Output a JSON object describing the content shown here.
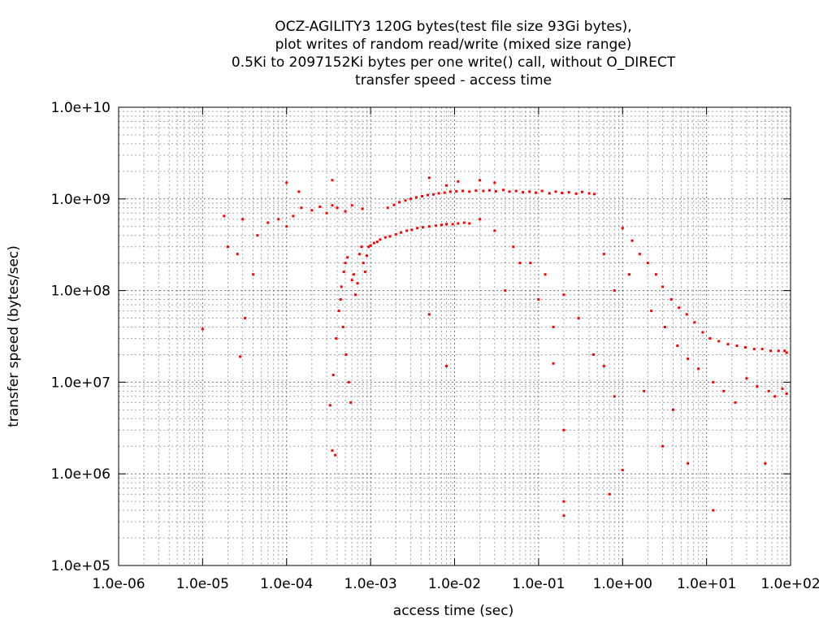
{
  "chart_data": {
    "type": "scatter",
    "title": [
      "OCZ-AGILITY3 120G bytes(test file size 93Gi bytes),",
      "plot writes of random read/write (mixed size range)",
      "0.5Ki to 2097152Ki bytes per one write() call, without O_DIRECT",
      "transfer speed - access time"
    ],
    "xlabel": "access time (sec)",
    "ylabel": "transfer speed (bytes/sec)",
    "x_scale": "log",
    "y_scale": "log",
    "xlim": [
      1e-06,
      100
    ],
    "ylim": [
      100000,
      10000000000
    ],
    "x_ticks": [
      {
        "value": 1e-06,
        "label": "1.0e-06"
      },
      {
        "value": 1e-05,
        "label": "1.0e-05"
      },
      {
        "value": 0.0001,
        "label": "1.0e-04"
      },
      {
        "value": 0.001,
        "label": "1.0e-03"
      },
      {
        "value": 0.01,
        "label": "1.0e-02"
      },
      {
        "value": 0.1,
        "label": "1.0e-01"
      },
      {
        "value": 1,
        "label": "1.0e+00"
      },
      {
        "value": 10,
        "label": "1.0e+01"
      },
      {
        "value": 100,
        "label": "1.0e+02"
      }
    ],
    "y_ticks": [
      {
        "value": 100000,
        "label": "1.0e+05"
      },
      {
        "value": 1000000,
        "label": "1.0e+06"
      },
      {
        "value": 10000000,
        "label": "1.0e+07"
      },
      {
        "value": 100000000,
        "label": "1.0e+08"
      },
      {
        "value": 1000000000,
        "label": "1.0e+09"
      },
      {
        "value": 10000000000,
        "label": "1.0e+10"
      }
    ],
    "grid": true,
    "minor_grid": true,
    "marker_color": "#ff0000",
    "series": [
      {
        "points": [
          [
            0.00035,
            1800000.0
          ],
          [
            0.00038,
            1600000.0
          ],
          [
            0.00033,
            5600000.0
          ],
          [
            0.00036,
            12000000.0
          ],
          [
            0.00039,
            30000000.0
          ],
          [
            0.00042,
            60000000.0
          ],
          [
            0.00045,
            110000000.0
          ],
          [
            0.00048,
            160000000.0
          ],
          [
            0.0005,
            200000000.0
          ],
          [
            0.00053,
            230000000.0
          ],
          [
            0.00044,
            80000000.0
          ],
          [
            0.00047,
            40000000.0
          ],
          [
            0.00051,
            20000000.0
          ],
          [
            0.00055,
            10000000.0
          ],
          [
            0.00058,
            6000000.0
          ],
          [
            0.0006,
            130000000.0
          ],
          [
            0.00063,
            150000000.0
          ],
          [
            0.00066,
            90000000.0
          ],
          [
            0.0007,
            120000000.0
          ],
          [
            0.00074,
            250000000.0
          ],
          [
            0.00078,
            300000000.0
          ],
          [
            0.00082,
            200000000.0
          ],
          [
            0.00086,
            160000000.0
          ],
          [
            0.0009,
            240000000.0
          ],
          [
            0.00095,
            300000000.0
          ],
          [
            0.001,
            310000000.0
          ],
          [
            0.0011,
            330000000.0
          ],
          [
            0.0012,
            340000000.0
          ],
          [
            0.0013,
            360000000.0
          ],
          [
            0.0015,
            380000000.0
          ],
          [
            0.0017,
            390000000.0
          ],
          [
            0.002,
            410000000.0
          ],
          [
            0.0023,
            430000000.0
          ],
          [
            0.0027,
            450000000.0
          ],
          [
            0.0031,
            460000000.0
          ],
          [
            0.0036,
            480000000.0
          ],
          [
            0.0042,
            490000000.0
          ],
          [
            0.005,
            500000000.0
          ],
          [
            0.006,
            510000000.0
          ],
          [
            0.007,
            520000000.0
          ],
          [
            0.008,
            530000000.0
          ],
          [
            0.0095,
            530000000.0
          ],
          [
            0.011,
            540000000.0
          ],
          [
            0.013,
            550000000.0
          ],
          [
            0.015,
            540000000.0
          ],
          [
            0.0016,
            800000000.0
          ],
          [
            0.0019,
            860000000.0
          ],
          [
            0.0022,
            920000000.0
          ],
          [
            0.0026,
            960000000.0
          ],
          [
            0.003,
            1000000000.0
          ],
          [
            0.0035,
            1040000000.0
          ],
          [
            0.0041,
            1070000000.0
          ],
          [
            0.0048,
            1100000000.0
          ],
          [
            0.0056,
            1120000000.0
          ],
          [
            0.0065,
            1150000000.0
          ],
          [
            0.0076,
            1170000000.0
          ],
          [
            0.0089,
            1200000000.0
          ],
          [
            0.0105,
            1210000000.0
          ],
          [
            0.0125,
            1220000000.0
          ],
          [
            0.015,
            1200000000.0
          ],
          [
            0.018,
            1230000000.0
          ],
          [
            0.022,
            1220000000.0
          ],
          [
            0.026,
            1240000000.0
          ],
          [
            0.031,
            1210000000.0
          ],
          [
            0.038,
            1250000000.0
          ],
          [
            0.045,
            1200000000.0
          ],
          [
            0.054,
            1220000000.0
          ],
          [
            0.065,
            1180000000.0
          ],
          [
            0.078,
            1200000000.0
          ],
          [
            0.093,
            1170000000.0
          ],
          [
            0.11,
            1220000000.0
          ],
          [
            0.135,
            1150000000.0
          ],
          [
            0.16,
            1200000000.0
          ],
          [
            0.19,
            1160000000.0
          ],
          [
            0.23,
            1180000000.0
          ],
          [
            0.28,
            1140000000.0
          ],
          [
            0.33,
            1190000000.0
          ],
          [
            0.4,
            1150000000.0
          ],
          [
            0.46,
            1130000000.0
          ],
          [
            0.011,
            1550000000.0
          ],
          [
            0.02,
            1600000000.0
          ],
          [
            0.03,
            1500000000.0
          ],
          [
            0.005,
            1700000000.0
          ],
          [
            0.008,
            1400000000.0
          ],
          [
            0.00012,
            650000000.0
          ],
          [
            0.00015,
            800000000.0
          ],
          [
            0.0002,
            750000000.0
          ],
          [
            0.00025,
            820000000.0
          ],
          [
            0.0003,
            700000000.0
          ],
          [
            0.00035,
            850000000.0
          ],
          [
            0.0004,
            800000000.0
          ],
          [
            0.0005,
            730000000.0
          ],
          [
            0.0006,
            850000000.0
          ],
          [
            0.0008,
            780000000.0
          ],
          [
            0.0001,
            500000000.0
          ],
          [
            8e-05,
            600000000.0
          ],
          [
            6e-05,
            550000000.0
          ],
          [
            4.5e-05,
            400000000.0
          ],
          [
            3e-05,
            600000000.0
          ],
          [
            2e-05,
            300000000.0
          ],
          [
            1.8e-05,
            650000000.0
          ],
          [
            2.6e-05,
            250000000.0
          ],
          [
            4e-05,
            150000000.0
          ],
          [
            1e-05,
            38000000.0
          ],
          [
            2.8e-05,
            19000000.0
          ],
          [
            3.2e-05,
            50000000.0
          ],
          [
            0.00014,
            1200000000.0
          ],
          [
            0.0001,
            1500000000.0
          ],
          [
            0.00035,
            1600000000.0
          ],
          [
            0.02,
            600000000.0
          ],
          [
            0.03,
            450000000.0
          ],
          [
            0.05,
            300000000.0
          ],
          [
            0.08,
            200000000.0
          ],
          [
            0.12,
            150000000.0
          ],
          [
            0.2,
            90000000.0
          ],
          [
            0.3,
            50000000.0
          ],
          [
            0.45,
            20000000.0
          ],
          [
            0.6,
            15000000.0
          ],
          [
            0.8,
            7000000.0
          ],
          [
            1.0,
            480000000.0
          ],
          [
            1.3,
            350000000.0
          ],
          [
            1.6,
            250000000.0
          ],
          [
            2.0,
            200000000.0
          ],
          [
            2.5,
            150000000.0
          ],
          [
            3.0,
            110000000.0
          ],
          [
            3.8,
            80000000.0
          ],
          [
            4.7,
            65000000.0
          ],
          [
            5.8,
            55000000.0
          ],
          [
            7.2,
            45000000.0
          ],
          [
            9.0,
            35000000.0
          ],
          [
            11.0,
            30000000.0
          ],
          [
            14.0,
            28000000.0
          ],
          [
            18.0,
            26000000.0
          ],
          [
            23.0,
            25000000.0
          ],
          [
            29.0,
            24000000.0
          ],
          [
            37.0,
            23000000.0
          ],
          [
            46.0,
            23000000.0
          ],
          [
            58.0,
            22000000.0
          ],
          [
            72.0,
            22000000.0
          ],
          [
            85.0,
            22000000.0
          ],
          [
            90.0,
            21000000.0
          ],
          [
            1.2,
            150000000.0
          ],
          [
            2.2,
            60000000.0
          ],
          [
            3.2,
            40000000.0
          ],
          [
            4.5,
            25000000.0
          ],
          [
            6.0,
            18000000.0
          ],
          [
            8.0,
            14000000.0
          ],
          [
            12.0,
            10000000.0
          ],
          [
            16.0,
            8000000.0
          ],
          [
            22.0,
            6000000.0
          ],
          [
            30.0,
            11000000.0
          ],
          [
            40.0,
            9000000.0
          ],
          [
            55.0,
            8000000.0
          ],
          [
            65.0,
            7000000.0
          ],
          [
            80.0,
            8500000.0
          ],
          [
            90.0,
            7500000.0
          ],
          [
            50.0,
            1300000.0
          ],
          [
            12.0,
            400000.0
          ],
          [
            3.0,
            2000000.0
          ],
          [
            0.7,
            600000.0
          ],
          [
            0.2,
            350000.0
          ],
          [
            1.0,
            1100000.0
          ],
          [
            0.2,
            500000.0
          ],
          [
            4.0,
            5000000.0
          ],
          [
            6.0,
            1300000.0
          ],
          [
            1.8,
            8000000.0
          ],
          [
            0.1,
            80000000.0
          ],
          [
            0.15,
            16000000.0
          ],
          [
            0.06,
            200000000.0
          ],
          [
            0.04,
            100000000.0
          ],
          [
            0.008,
            15000000.0
          ],
          [
            0.005,
            55000000.0
          ],
          [
            0.2,
            3000000.0
          ],
          [
            0.15,
            40000000.0
          ],
          [
            0.6,
            250000000.0
          ],
          [
            0.8,
            100000000.0
          ]
        ]
      }
    ]
  }
}
